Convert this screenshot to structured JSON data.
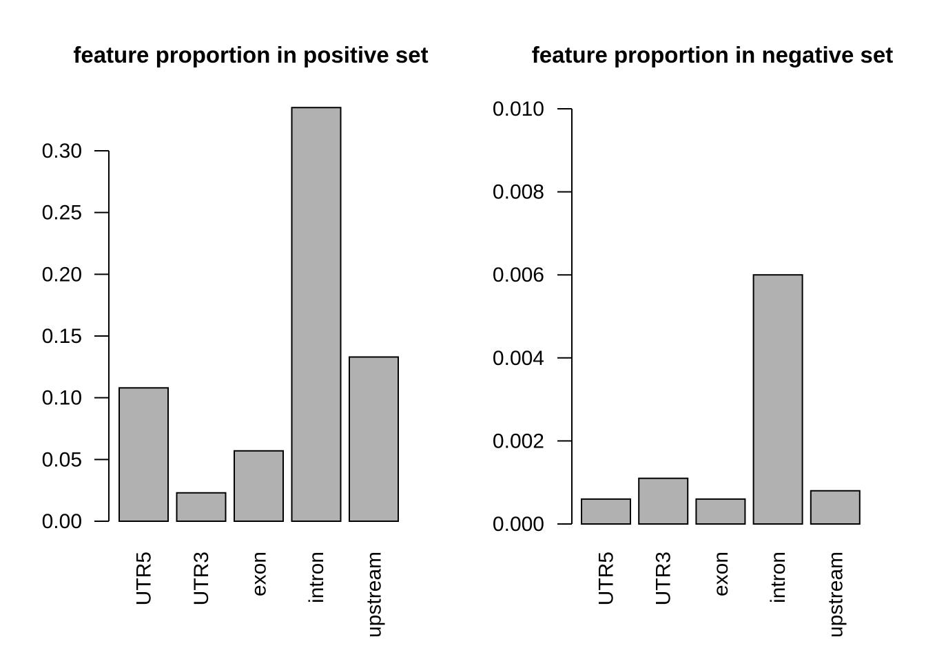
{
  "page": {
    "background_color": "#ffffff",
    "text_color": "#000000"
  },
  "chart_data": [
    {
      "type": "bar",
      "title": "feature proportion in positive set",
      "categories": [
        "UTR5",
        "UTR3",
        "exon",
        "intron",
        "upstream"
      ],
      "values": [
        0.108,
        0.023,
        0.057,
        0.335,
        0.133
      ],
      "xlabel": "",
      "ylabel": "",
      "ylim": [
        0,
        0.3
      ],
      "yticks": [
        "0.00",
        "0.05",
        "0.10",
        "0.15",
        "0.20",
        "0.25",
        "0.30"
      ],
      "grid": "off",
      "legend": "none",
      "bar_fill": "#b1b1b1",
      "bar_stroke": "#000000"
    },
    {
      "type": "bar",
      "title": "feature proportion in negative set",
      "categories": [
        "UTR5",
        "UTR3",
        "exon",
        "intron",
        "upstream"
      ],
      "values": [
        0.0006,
        0.0011,
        0.0006,
        0.006,
        0.0008
      ],
      "xlabel": "",
      "ylabel": "",
      "ylim": [
        0,
        0.01
      ],
      "yticks": [
        "0.000",
        "0.002",
        "0.004",
        "0.006",
        "0.008",
        "0.010"
      ],
      "grid": "off",
      "legend": "none",
      "bar_fill": "#b1b1b1",
      "bar_stroke": "#000000"
    }
  ]
}
